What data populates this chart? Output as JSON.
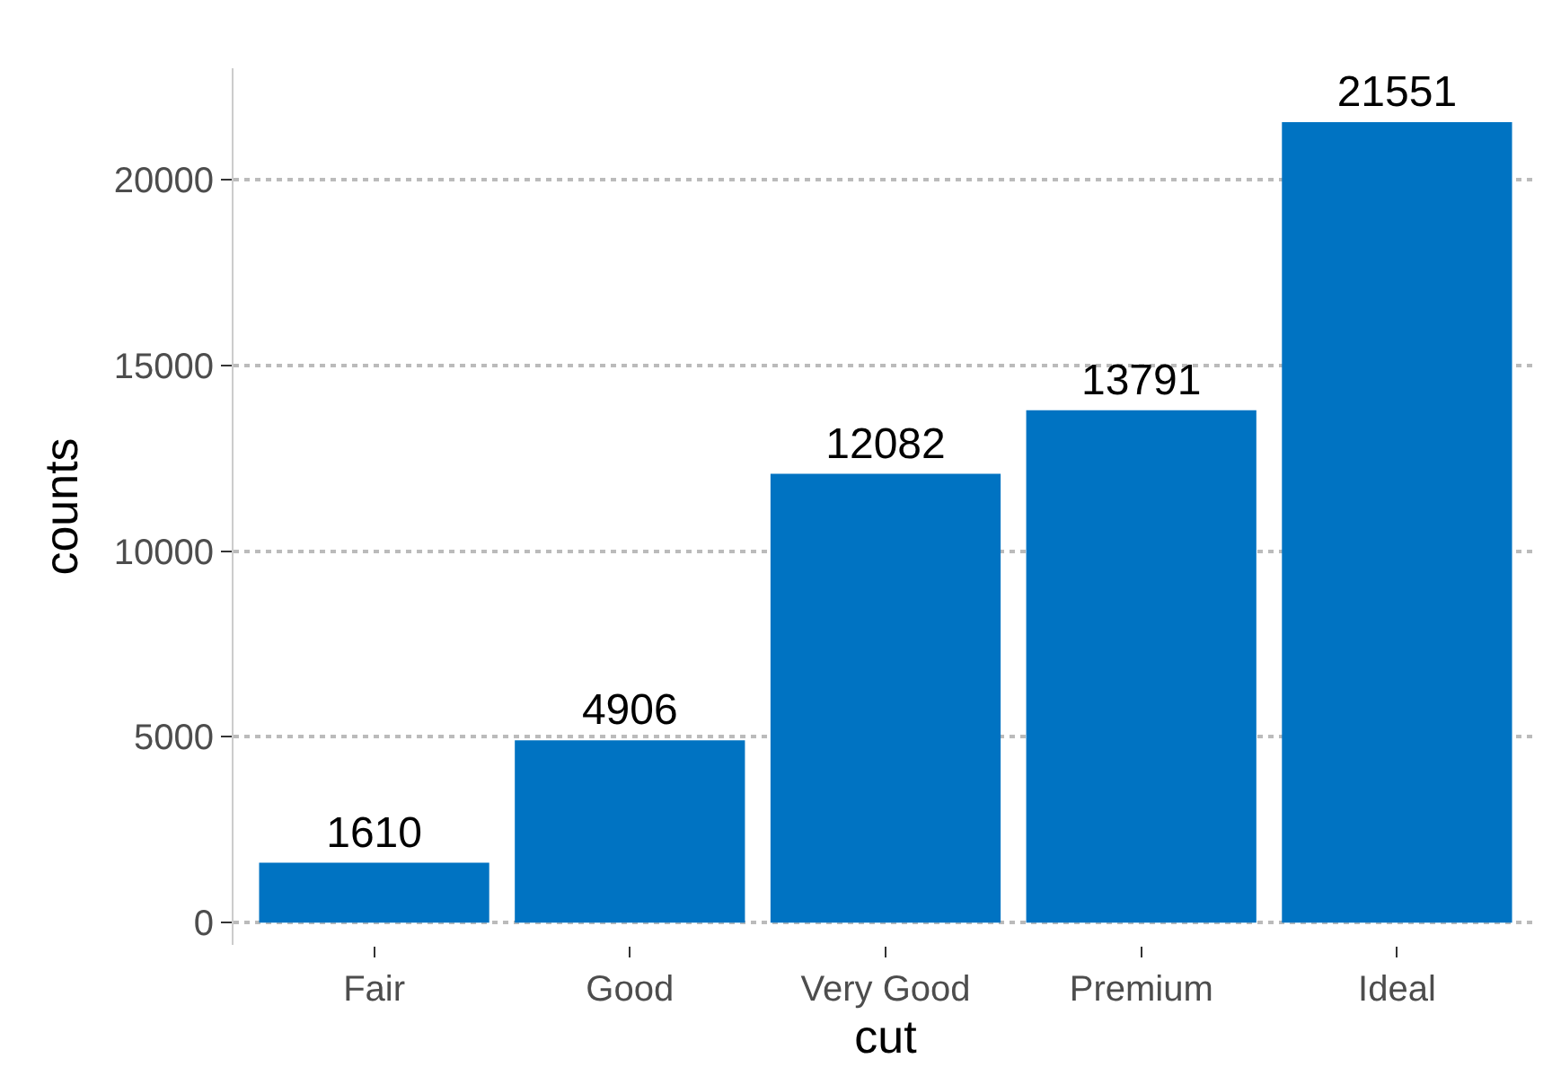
{
  "chart_data": {
    "type": "bar",
    "xlabel": "cut",
    "ylabel": "counts",
    "categories": [
      "Fair",
      "Good",
      "Very Good",
      "Premium",
      "Ideal"
    ],
    "values": [
      1610,
      4906,
      12082,
      13791,
      21551
    ],
    "color": "#0073c2",
    "ylim": [
      -600,
      23000
    ],
    "yticks": [
      0,
      5000,
      10000,
      15000,
      20000
    ],
    "grid": "y",
    "data_labels": true
  }
}
